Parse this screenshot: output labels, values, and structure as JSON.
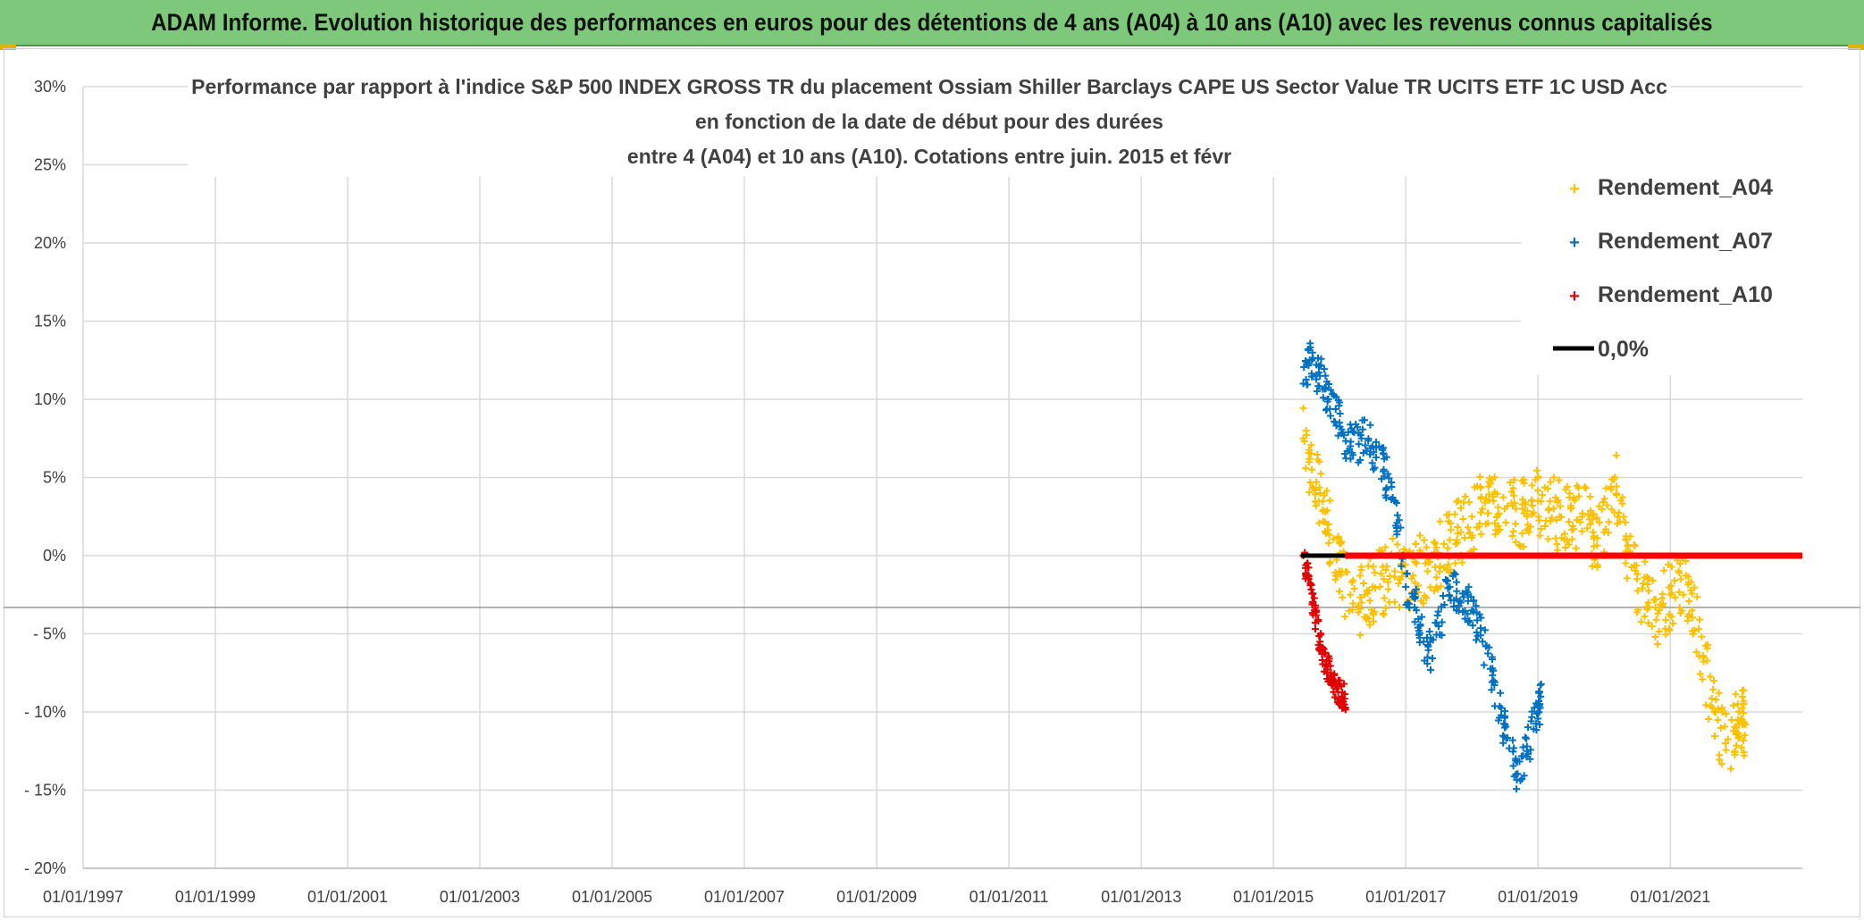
{
  "header": {
    "title": "ADAM Informe. Evolution historique des performances en euros pour des détentions de 4 ans (A04) à 10 ans (A10) avec les revenus connus capitalisés"
  },
  "chart_data": {
    "type": "scatter",
    "title_lines": [
      "Performance par rapport à l'indice S&P 500 INDEX GROSS TR  du placement Ossiam Shiller Barclays CAPE US Sector Value TR UCITS ETF 1C USD Acc",
      "en fonction de la date de début pour des durées",
      "entre 4 (A04) et 10 ans (A10). Cotations entre juin. 2015 et févr"
    ],
    "x_axis": {
      "type": "date",
      "range": [
        "1997-01-01",
        "2022-12-31"
      ],
      "tick_labels": [
        "01/01/1997",
        "01/01/1999",
        "01/01/2001",
        "01/01/2003",
        "01/01/2005",
        "01/01/2007",
        "01/01/2009",
        "01/01/2011",
        "01/01/2013",
        "01/01/2015",
        "01/01/2017",
        "01/01/2019",
        "01/01/2021"
      ]
    },
    "y_axis": {
      "unit": "percent",
      "range": [
        -20,
        30
      ],
      "tick_labels": [
        "30%",
        "25%",
        "20%",
        "15%",
        "10%",
        "5%",
        "0%",
        "- 5%",
        "- 10%",
        "- 15%",
        "- 20%"
      ]
    },
    "grid": true,
    "legend_position": "top-right",
    "series": [
      {
        "name": "Rendement_A04",
        "color": "#ffc000",
        "marker": "plus",
        "points": [
          [
            "2015-06-15",
            7.5
          ],
          [
            "2015-08-01",
            5.5
          ],
          [
            "2015-09-15",
            4.0
          ],
          [
            "2015-11-01",
            2.0
          ],
          [
            "2016-01-01",
            -1.0
          ],
          [
            "2016-03-01",
            -2.5
          ],
          [
            "2016-05-01",
            -3.0
          ],
          [
            "2016-07-01",
            -2.0
          ],
          [
            "2016-09-01",
            -1.5
          ],
          [
            "2016-11-01",
            -1.0
          ],
          [
            "2017-01-01",
            -2.0
          ],
          [
            "2017-03-01",
            -0.5
          ],
          [
            "2017-05-01",
            -1.0
          ],
          [
            "2017-07-01",
            0.0
          ],
          [
            "2017-09-01",
            1.0
          ],
          [
            "2017-11-01",
            1.5
          ],
          [
            "2018-01-01",
            2.5
          ],
          [
            "2018-03-01",
            3.0
          ],
          [
            "2018-05-01",
            3.5
          ],
          [
            "2018-07-01",
            3.0
          ],
          [
            "2018-09-01",
            3.0
          ],
          [
            "2018-11-01",
            2.5
          ],
          [
            "2019-01-01",
            3.5
          ],
          [
            "2019-03-01",
            3.0
          ],
          [
            "2019-05-01",
            2.5
          ],
          [
            "2019-07-01",
            3.0
          ],
          [
            "2019-09-01",
            2.5
          ],
          [
            "2019-11-01",
            1.5
          ],
          [
            "2020-01-01",
            1.5
          ],
          [
            "2020-03-01",
            5.0
          ],
          [
            "2020-05-01",
            1.0
          ],
          [
            "2020-07-01",
            -1.5
          ],
          [
            "2020-09-01",
            -3.0
          ],
          [
            "2020-11-01",
            -3.5
          ],
          [
            "2021-01-01",
            -2.5
          ],
          [
            "2021-03-01",
            -1.5
          ],
          [
            "2021-05-01",
            -3.5
          ],
          [
            "2021-07-01",
            -6.5
          ],
          [
            "2021-09-01",
            -10.0
          ],
          [
            "2021-11-01",
            -12.0
          ],
          [
            "2022-01-01",
            -11.0
          ],
          [
            "2022-02-01",
            -10.5
          ]
        ]
      },
      {
        "name": "Rendement_A07",
        "color": "#0070c0",
        "marker": "plus",
        "points": [
          [
            "2015-06-15",
            11.0
          ],
          [
            "2015-08-01",
            12.5
          ],
          [
            "2015-09-15",
            11.5
          ],
          [
            "2015-11-01",
            10.0
          ],
          [
            "2016-01-01",
            8.5
          ],
          [
            "2016-03-01",
            7.0
          ],
          [
            "2016-05-01",
            7.5
          ],
          [
            "2016-07-01",
            7.0
          ],
          [
            "2016-09-01",
            5.5
          ],
          [
            "2016-11-01",
            3.5
          ],
          [
            "2017-01-01",
            -2.0
          ],
          [
            "2017-03-01",
            -3.5
          ],
          [
            "2017-05-01",
            -6.5
          ],
          [
            "2017-07-01",
            -4.5
          ],
          [
            "2017-09-01",
            -2.0
          ],
          [
            "2017-11-01",
            -3.0
          ],
          [
            "2018-01-01",
            -3.5
          ],
          [
            "2018-03-01",
            -5.5
          ],
          [
            "2018-05-01",
            -8.0
          ],
          [
            "2018-07-01",
            -11.0
          ],
          [
            "2018-09-01",
            -14.0
          ],
          [
            "2018-11-01",
            -12.5
          ],
          [
            "2019-01-01",
            -9.5
          ]
        ]
      },
      {
        "name": "Rendement_A10",
        "color": "#e00000",
        "marker": "plus",
        "points": [
          [
            "2015-06-15",
            0.0
          ],
          [
            "2015-07-15",
            -1.5
          ],
          [
            "2015-08-15",
            -3.5
          ],
          [
            "2015-09-15",
            -5.5
          ],
          [
            "2015-10-15",
            -7.0
          ],
          [
            "2015-11-15",
            -7.5
          ],
          [
            "2015-12-15",
            -8.5
          ],
          [
            "2016-01-15",
            -9.0
          ]
        ]
      },
      {
        "name": "0,0%",
        "color": "#000000",
        "marker": "line",
        "points": [
          [
            "2015-06-01",
            0.0
          ],
          [
            "2016-02-01",
            0.0
          ]
        ]
      }
    ],
    "zero_line_red": {
      "from": "2016-02-01",
      "to": "2022-12-31",
      "value": 0.0,
      "color": "#ff0000"
    },
    "legend": [
      {
        "label": "Rendement_A04",
        "color": "#ffc000",
        "marker": "plus"
      },
      {
        "label": "Rendement_A07",
        "color": "#0070c0",
        "marker": "plus"
      },
      {
        "label": "Rendement_A10",
        "color": "#e00000",
        "marker": "plus"
      },
      {
        "label": "0,0%",
        "color": "#000000",
        "marker": "line"
      }
    ]
  }
}
